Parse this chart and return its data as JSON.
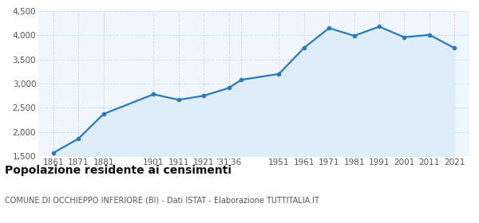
{
  "years": [
    1861,
    1871,
    1881,
    1901,
    1911,
    1921,
    1931,
    1936,
    1951,
    1961,
    1971,
    1981,
    1991,
    2001,
    2011,
    2021
  ],
  "population": [
    1567,
    1861,
    2371,
    2780,
    2665,
    2750,
    2910,
    3080,
    3200,
    3740,
    4150,
    3990,
    4180,
    3960,
    4010,
    3740
  ],
  "line_color": "#2979c0",
  "fill_color": "#deedf8",
  "marker_color": "#2979c0",
  "background_color": "#f0f7fc",
  "grid_color": "#c8d8e8",
  "ylim": [
    1500,
    4500
  ],
  "yticks": [
    1500,
    2000,
    2500,
    3000,
    3500,
    4000,
    4500
  ],
  "xlim_left": 1855,
  "xlim_right": 2027,
  "title": "Popolazione residente ai censimenti",
  "subtitle": "COMUNE DI OCCHIEPPO INFERIORE (BI) - Dati ISTAT - Elaborazione TUTTITALIA.IT",
  "title_fontsize": 10,
  "subtitle_fontsize": 7,
  "tick_fontsize": 7.5,
  "ytick_fontsize": 7.5
}
